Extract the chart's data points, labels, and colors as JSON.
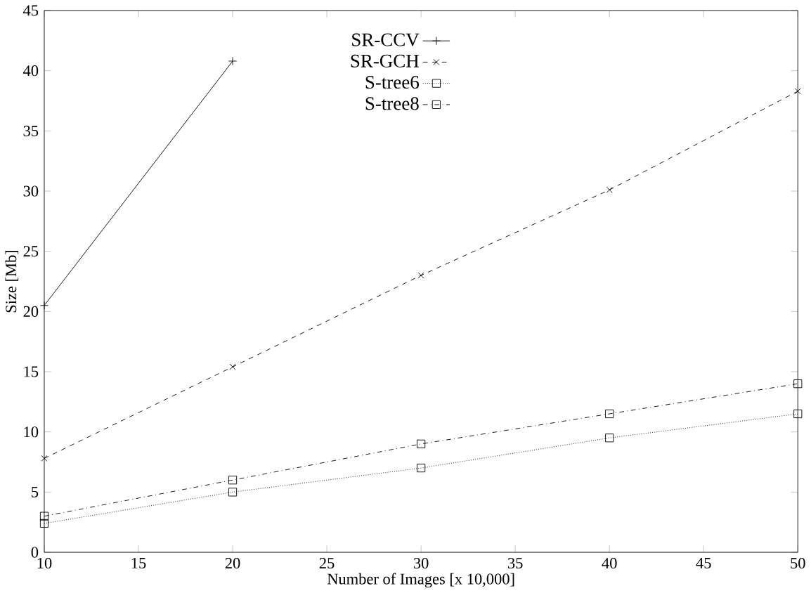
{
  "chart_data": {
    "type": "line",
    "xlabel": "Number of Images [x 10,000]",
    "ylabel": "Size [Mb]",
    "xlim": [
      10,
      50
    ],
    "xticks": [
      10,
      15,
      20,
      25,
      30,
      35,
      40,
      45,
      50
    ],
    "ylim": [
      0,
      45
    ],
    "yticks": [
      0,
      5,
      10,
      15,
      20,
      25,
      30,
      35,
      40,
      45
    ],
    "grid": false,
    "legend": "top",
    "series": [
      {
        "name": "SR-CCV",
        "color": "#000000",
        "marker": "plus",
        "line_style": "solid",
        "x": [
          10,
          20
        ],
        "values": [
          20.5,
          40.8
        ]
      },
      {
        "name": "SR-GCH",
        "color": "#000000",
        "marker": "cross",
        "line_style": "dashed",
        "x": [
          10,
          20,
          30,
          40,
          50
        ],
        "values": [
          7.8,
          15.4,
          23,
          30.1,
          38.3
        ]
      },
      {
        "name": "S-tree6",
        "color": "#000000",
        "marker": "square",
        "line_style": "dotted",
        "x": [
          10,
          20,
          30,
          40,
          50
        ],
        "values": [
          2.4,
          5,
          7,
          9.5,
          11.5
        ]
      },
      {
        "name": "S-tree8",
        "color": "#000000",
        "marker": "square",
        "line_style": "dashdot",
        "x": [
          10,
          20,
          30,
          40,
          50
        ],
        "values": [
          3,
          6,
          9,
          11.5,
          14
        ]
      }
    ]
  }
}
